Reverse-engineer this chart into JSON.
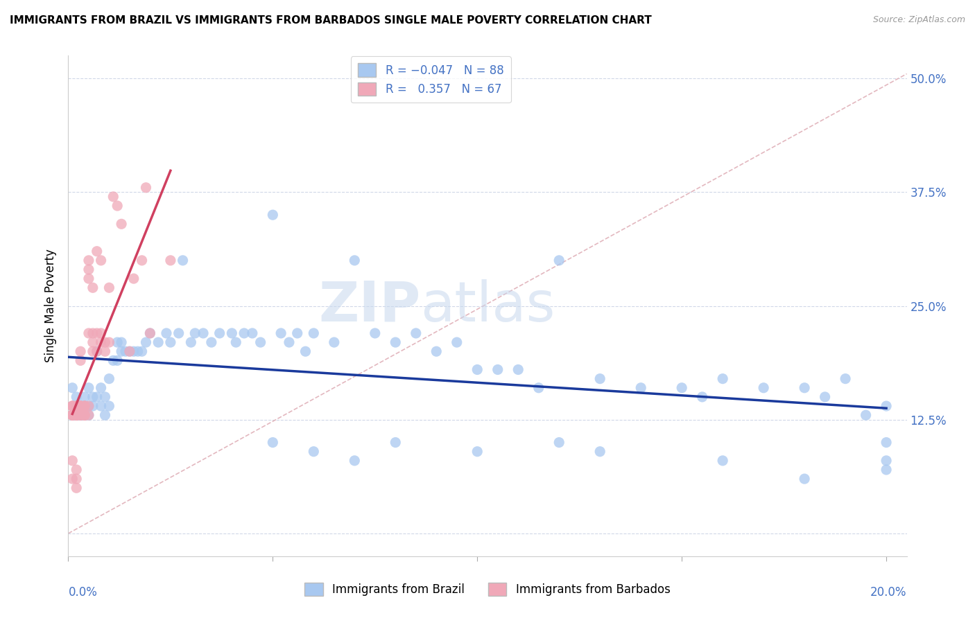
{
  "title": "IMMIGRANTS FROM BRAZIL VS IMMIGRANTS FROM BARBADOS SINGLE MALE POVERTY CORRELATION CHART",
  "source": "Source: ZipAtlas.com",
  "ylabel": "Single Male Poverty",
  "xlim": [
    0.0,
    0.205
  ],
  "ylim": [
    -0.025,
    0.525
  ],
  "brazil_color": "#a8c8f0",
  "barbados_color": "#f0a8b8",
  "brazil_line_color": "#1a3a9c",
  "barbados_line_color": "#d04060",
  "brazil_R": -0.047,
  "brazil_N": 88,
  "barbados_R": 0.357,
  "barbados_N": 67,
  "legend_label_brazil": "Immigrants from Brazil",
  "legend_label_barbados": "Immigrants from Barbados",
  "watermark_zip": "ZIP",
  "watermark_atlas": "atlas",
  "right_yticklabels": [
    "",
    "12.5%",
    "25.0%",
    "37.5%",
    "50.0%"
  ],
  "ytick_positions": [
    0.0,
    0.125,
    0.25,
    0.375,
    0.5
  ],
  "xtick_positions": [
    0.0,
    0.05,
    0.1,
    0.15,
    0.2
  ],
  "diag_color": "#e0b0b8",
  "brazil_x": [
    0.001,
    0.002,
    0.002,
    0.003,
    0.003,
    0.004,
    0.004,
    0.005,
    0.005,
    0.005,
    0.006,
    0.006,
    0.007,
    0.007,
    0.008,
    0.008,
    0.009,
    0.009,
    0.01,
    0.01,
    0.011,
    0.012,
    0.012,
    0.013,
    0.013,
    0.014,
    0.015,
    0.016,
    0.017,
    0.018,
    0.019,
    0.02,
    0.022,
    0.024,
    0.025,
    0.027,
    0.028,
    0.03,
    0.031,
    0.033,
    0.035,
    0.037,
    0.04,
    0.041,
    0.043,
    0.045,
    0.047,
    0.05,
    0.052,
    0.054,
    0.056,
    0.058,
    0.06,
    0.065,
    0.07,
    0.075,
    0.08,
    0.085,
    0.09,
    0.095,
    0.1,
    0.105,
    0.11,
    0.115,
    0.12,
    0.13,
    0.14,
    0.15,
    0.155,
    0.16,
    0.17,
    0.18,
    0.185,
    0.19,
    0.195,
    0.2,
    0.2,
    0.2,
    0.05,
    0.06,
    0.07,
    0.08,
    0.1,
    0.12,
    0.13,
    0.16,
    0.18,
    0.2
  ],
  "brazil_y": [
    0.16,
    0.14,
    0.15,
    0.14,
    0.13,
    0.15,
    0.14,
    0.16,
    0.13,
    0.14,
    0.15,
    0.14,
    0.2,
    0.15,
    0.16,
    0.14,
    0.15,
    0.13,
    0.17,
    0.14,
    0.19,
    0.21,
    0.19,
    0.21,
    0.2,
    0.2,
    0.2,
    0.2,
    0.2,
    0.2,
    0.21,
    0.22,
    0.21,
    0.22,
    0.21,
    0.22,
    0.3,
    0.21,
    0.22,
    0.22,
    0.21,
    0.22,
    0.22,
    0.21,
    0.22,
    0.22,
    0.21,
    0.35,
    0.22,
    0.21,
    0.22,
    0.2,
    0.22,
    0.21,
    0.3,
    0.22,
    0.21,
    0.22,
    0.2,
    0.21,
    0.18,
    0.18,
    0.18,
    0.16,
    0.3,
    0.17,
    0.16,
    0.16,
    0.15,
    0.17,
    0.16,
    0.16,
    0.15,
    0.17,
    0.13,
    0.14,
    0.1,
    0.08,
    0.1,
    0.09,
    0.08,
    0.1,
    0.09,
    0.1,
    0.09,
    0.08,
    0.06,
    0.07
  ],
  "barbados_x": [
    0.001,
    0.001,
    0.001,
    0.001,
    0.001,
    0.001,
    0.001,
    0.001,
    0.001,
    0.001,
    0.002,
    0.002,
    0.002,
    0.002,
    0.002,
    0.002,
    0.002,
    0.002,
    0.002,
    0.002,
    0.002,
    0.003,
    0.003,
    0.003,
    0.003,
    0.003,
    0.003,
    0.003,
    0.003,
    0.003,
    0.003,
    0.004,
    0.004,
    0.004,
    0.004,
    0.004,
    0.004,
    0.004,
    0.005,
    0.005,
    0.005,
    0.005,
    0.005,
    0.005,
    0.006,
    0.006,
    0.006,
    0.006,
    0.007,
    0.007,
    0.007,
    0.008,
    0.008,
    0.008,
    0.009,
    0.009,
    0.01,
    0.01,
    0.011,
    0.012,
    0.013,
    0.015,
    0.016,
    0.018,
    0.019,
    0.02,
    0.025
  ],
  "barbados_y": [
    0.14,
    0.14,
    0.13,
    0.13,
    0.14,
    0.13,
    0.13,
    0.13,
    0.08,
    0.06,
    0.14,
    0.13,
    0.13,
    0.14,
    0.13,
    0.14,
    0.13,
    0.13,
    0.07,
    0.06,
    0.05,
    0.14,
    0.14,
    0.13,
    0.14,
    0.13,
    0.14,
    0.13,
    0.14,
    0.2,
    0.19,
    0.14,
    0.13,
    0.13,
    0.14,
    0.13,
    0.14,
    0.13,
    0.14,
    0.13,
    0.22,
    0.3,
    0.29,
    0.28,
    0.27,
    0.22,
    0.21,
    0.2,
    0.31,
    0.22,
    0.2,
    0.3,
    0.22,
    0.21,
    0.2,
    0.21,
    0.27,
    0.21,
    0.37,
    0.36,
    0.34,
    0.2,
    0.28,
    0.3,
    0.38,
    0.22,
    0.3
  ]
}
